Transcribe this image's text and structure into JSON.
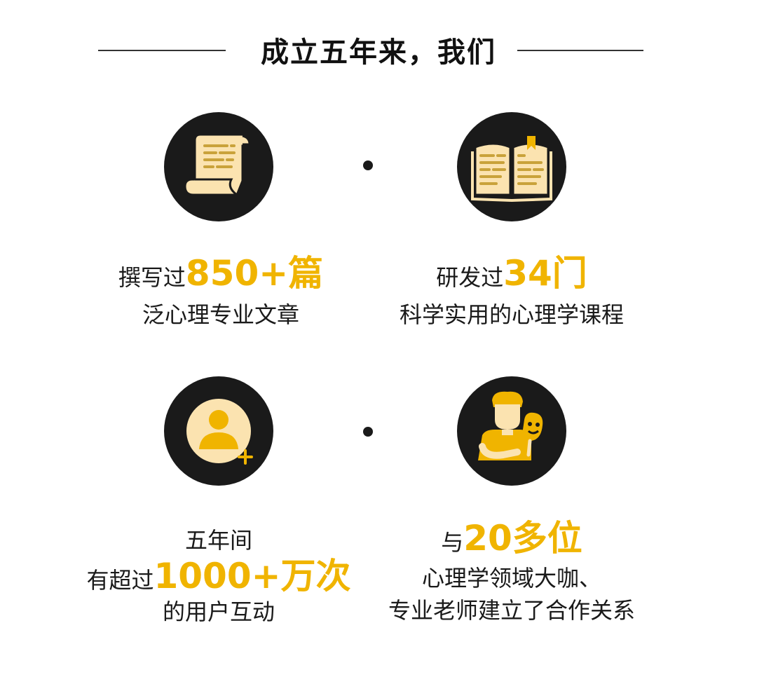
{
  "header": {
    "title": "成立五年来，我们"
  },
  "items": [
    {
      "icon": "scroll-icon",
      "prefix": "撰写过",
      "highlight": "850+篇",
      "line2": "泛心理专业文章"
    },
    {
      "icon": "open-book-icon",
      "prefix": "研发过",
      "highlight": "34门",
      "line2": "科学实用的心理学课程"
    },
    {
      "icon": "add-user-icon",
      "line1": "五年间",
      "prefix": "有超过",
      "highlight": "1000+万次",
      "line3": "的用户互动"
    },
    {
      "icon": "person-with-mask-icon",
      "prefix": "与",
      "highlight": "20多位",
      "line2": "心理学领域大咖、",
      "line3": "专业老师建立了合作关系"
    }
  ],
  "colors": {
    "accent": "#f0b400",
    "dark": "#1a1a1a",
    "cream": "#fbe3b0"
  }
}
